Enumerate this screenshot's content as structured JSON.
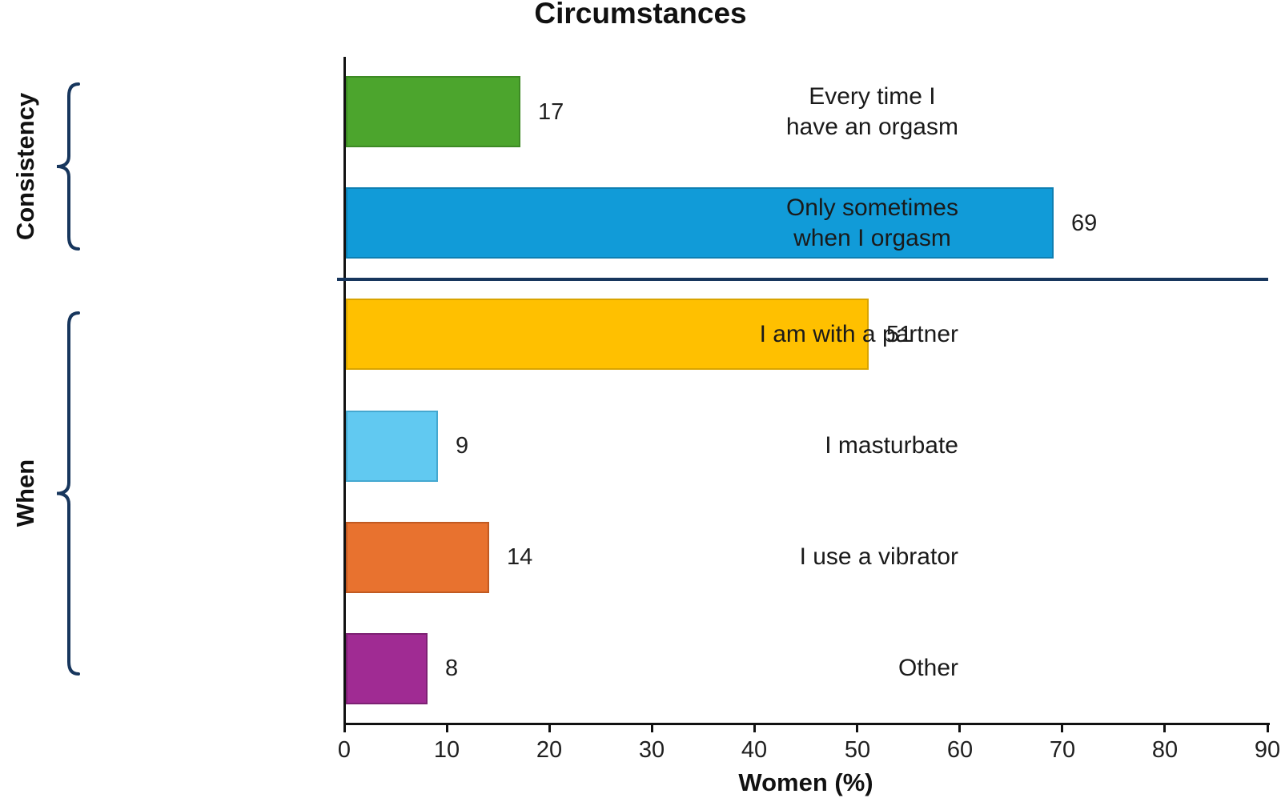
{
  "title": "Circumstances",
  "chart_data": {
    "type": "bar",
    "orientation": "horizontal",
    "title": "Circumstances",
    "xlabel": "Women (%)",
    "xlim": [
      0,
      90
    ],
    "xticks": [
      0,
      10,
      20,
      30,
      40,
      50,
      60,
      70,
      80,
      90
    ],
    "grid": false,
    "legend": "none",
    "categories": [
      "Every time I\nhave an orgasm",
      "Only sometimes\nwhen I orgasm",
      "I am with a partner",
      "I masturbate",
      "I use a vibrator",
      "Other"
    ],
    "values": [
      17,
      69,
      51,
      9,
      14,
      8
    ],
    "data_labels": [
      "17",
      "69",
      "51",
      "9",
      "14",
      "8"
    ],
    "bar_colors": [
      "#4ca52d",
      "#119bd8",
      "#ffc000",
      "#61c9f1",
      "#e8722f",
      "#a02b93"
    ],
    "bar_border_colors": [
      "#3d8a24",
      "#0e7fb2",
      "#d9a400",
      "#45a8d0",
      "#c15a22",
      "#7d2173"
    ],
    "groups": [
      {
        "label": "Consistency",
        "rows": [
          0,
          1
        ]
      },
      {
        "label": "When",
        "rows": [
          2,
          3,
          4,
          5
        ]
      }
    ],
    "colors": {
      "accent_navy": "#17365d",
      "axis": "#111111",
      "text": "#1a1a1a"
    }
  }
}
